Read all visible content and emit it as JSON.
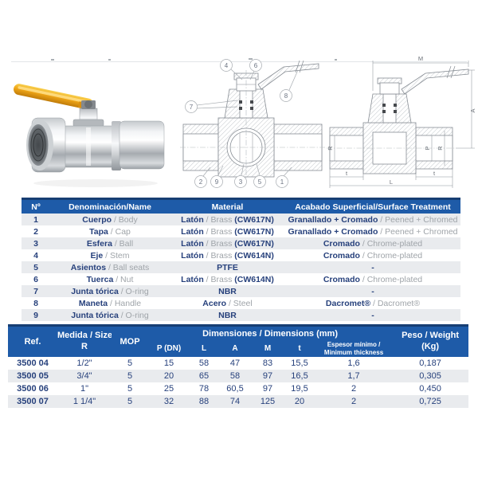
{
  "figures": {
    "cross_section": {
      "callouts": {
        "c1": "1",
        "c2": "2",
        "c3": "3",
        "c4": "4",
        "c5": "5",
        "c6": "6",
        "c7": "7",
        "c8": "8",
        "c9": "9"
      }
    },
    "dimension_drawing": {
      "labels": {
        "m": "M",
        "a": "A",
        "r_left": "R",
        "p": "P",
        "r_right": "R",
        "t_left": "t",
        "t_right": "t",
        "l": "L"
      }
    }
  },
  "materials_table": {
    "headers": {
      "num": "Nº",
      "name": "Denominación/Name",
      "material": "Material",
      "finish": "Acabado Superficial/Surface Treatment"
    },
    "rows": [
      {
        "num": "1",
        "name_es": "Cuerpo",
        "name_en": "Body",
        "mat_es": "Latón",
        "mat_en": "Brass",
        "mat_code": "(CW617N)",
        "fin_es": "Granallado + Cromado",
        "fin_en": "Peened + Chromed"
      },
      {
        "num": "2",
        "name_es": "Tapa",
        "name_en": "Cap",
        "mat_es": "Latón",
        "mat_en": "Brass",
        "mat_code": "(CW617N)",
        "fin_es": "Granallado + Cromado",
        "fin_en": "Peened + Chromed"
      },
      {
        "num": "3",
        "name_es": "Esfera",
        "name_en": "Ball",
        "mat_es": "Latón",
        "mat_en": "Brass",
        "mat_code": "(CW617N)",
        "fin_es": "Cromado",
        "fin_en": "Chrome-plated"
      },
      {
        "num": "4",
        "name_es": "Eje",
        "name_en": "Stem",
        "mat_es": "Latón",
        "mat_en": "Brass",
        "mat_code": "(CW614N)",
        "fin_es": "Cromado",
        "fin_en": "Chrome-plated"
      },
      {
        "num": "5",
        "name_es": "Asientos",
        "name_en": "Ball seats",
        "mat_es": "PTFE",
        "mat_en": "",
        "mat_code": "",
        "fin_es": "-",
        "fin_en": ""
      },
      {
        "num": "6",
        "name_es": "Tuerca",
        "name_en": "Nut",
        "mat_es": "Latón",
        "mat_en": "Brass",
        "mat_code": "(CW614N)",
        "fin_es": "Cromado",
        "fin_en": "Chrome-plated"
      },
      {
        "num": "7",
        "name_es": "Junta tórica",
        "name_en": "O-ring",
        "mat_es": "NBR",
        "mat_en": "",
        "mat_code": "",
        "fin_es": "-",
        "fin_en": ""
      },
      {
        "num": "8",
        "name_es": "Maneta",
        "name_en": "Handle",
        "mat_es": "Acero",
        "mat_en": "Steel",
        "mat_code": "",
        "fin_es": "Dacromet®",
        "fin_en": "Dacromet®"
      },
      {
        "num": "9",
        "name_es": "Junta tórica",
        "name_en": "O-ring",
        "mat_es": "NBR",
        "mat_en": "",
        "mat_code": "",
        "fin_es": "-",
        "fin_en": ""
      }
    ]
  },
  "dimensions_table": {
    "header": {
      "ref": "Ref.",
      "size_1": "Medida / Size",
      "size_2": "R",
      "mop": "MOP",
      "group": "Dimensiones / Dimensions (mm)",
      "weight_1": "Peso / Weight",
      "weight_2": "(Kg)",
      "sub_p": "P (DN)",
      "sub_l": "L",
      "sub_a": "A",
      "sub_m": "M",
      "sub_t": "t",
      "sub_esp1": "Espesor mínimo /",
      "sub_esp2": "Minimum thickness"
    },
    "rows": [
      [
        "3500 04",
        "1/2\"",
        "5",
        "15",
        "58",
        "47",
        "83",
        "15,5",
        "1,6",
        "0,187"
      ],
      [
        "3500 05",
        "3/4\"",
        "5",
        "20",
        "65",
        "58",
        "97",
        "16,5",
        "1,7",
        "0,305"
      ],
      [
        "3500 06",
        "1\"",
        "5",
        "25",
        "78",
        "60,5",
        "97",
        "19,5",
        "2",
        "0,450"
      ],
      [
        "3500 07",
        "1 1/4\"",
        "5",
        "32",
        "88",
        "74",
        "125",
        "20",
        "2",
        "0,725"
      ]
    ]
  },
  "colors": {
    "header_blue": "#1e5ba8",
    "header_cap_navy": "#173e73",
    "row_stripe": "#e9ebee",
    "text_navy": "#27417c",
    "text_gray": "#9fa4a9",
    "handle_yellow": "#f0a718"
  }
}
